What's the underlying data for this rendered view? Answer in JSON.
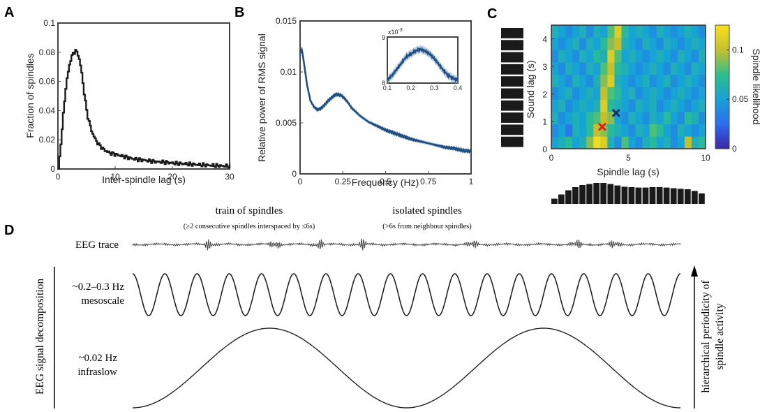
{
  "panels": {
    "A": "A",
    "B": "B",
    "C": "C",
    "D": "D"
  },
  "chart_data": [
    {
      "id": "A",
      "type": "line",
      "xlabel": "Inter-spindle lag (s)",
      "ylabel": "Fraction of spindles",
      "xlim": [
        0,
        30
      ],
      "ylim": [
        0,
        0.1
      ],
      "xticks": [
        "0",
        "10",
        "20",
        "30"
      ],
      "yticks": [
        "0",
        "0.02",
        "0.04",
        "0.06",
        "0.08",
        "0.1"
      ],
      "color": "#1a1a1a",
      "x": [
        0,
        0.5,
        1,
        1.5,
        2,
        2.5,
        3,
        3.5,
        4,
        4.5,
        5,
        5.5,
        6,
        6.5,
        7,
        7.5,
        8,
        9,
        10,
        11,
        12,
        13,
        14,
        15,
        16,
        17,
        18,
        19,
        20,
        21,
        22,
        23,
        24,
        25,
        26,
        27,
        28,
        29,
        30
      ],
      "y": [
        0,
        0.02,
        0.045,
        0.062,
        0.073,
        0.079,
        0.081,
        0.078,
        0.068,
        0.052,
        0.038,
        0.03,
        0.024,
        0.02,
        0.017,
        0.015,
        0.013,
        0.011,
        0.01,
        0.009,
        0.008,
        0.007,
        0.0065,
        0.006,
        0.0055,
        0.005,
        0.0048,
        0.0045,
        0.004,
        0.0038,
        0.0035,
        0.0033,
        0.003,
        0.0028,
        0.0026,
        0.0024,
        0.0022,
        0.002,
        0.002
      ]
    },
    {
      "id": "B",
      "type": "line",
      "xlabel": "Frequency (Hz)",
      "ylabel": "Relative power of RMS signal",
      "xlim": [
        0,
        1
      ],
      "ylim": [
        0,
        0.015
      ],
      "xticks": [
        "0",
        "0.25",
        "0.5",
        "0.75",
        "1"
      ],
      "yticks": [
        "0",
        "0.005",
        "0.01",
        "0.015"
      ],
      "color": "#1f4f82",
      "x": [
        0,
        0.01,
        0.02,
        0.04,
        0.06,
        0.08,
        0.1,
        0.12,
        0.14,
        0.16,
        0.18,
        0.2,
        0.22,
        0.24,
        0.26,
        0.28,
        0.3,
        0.35,
        0.4,
        0.45,
        0.5,
        0.55,
        0.6,
        0.65,
        0.7,
        0.75,
        0.8,
        0.85,
        0.9,
        0.95,
        1.0
      ],
      "y": [
        0.0118,
        0.0122,
        0.0112,
        0.0088,
        0.0072,
        0.0066,
        0.0063,
        0.0064,
        0.0067,
        0.0071,
        0.0074,
        0.0077,
        0.0078,
        0.0077,
        0.0074,
        0.007,
        0.0065,
        0.0057,
        0.0051,
        0.0047,
        0.0043,
        0.004,
        0.0037,
        0.0034,
        0.0032,
        0.003,
        0.0028,
        0.0026,
        0.0025,
        0.0023,
        0.0022
      ],
      "inset": {
        "xlim": [
          0.1,
          0.4
        ],
        "ylim": [
          0.006,
          0.009
        ],
        "xticks": [
          "0.1",
          "0.2",
          "0.3",
          "0.4"
        ],
        "yticks": [
          "8",
          "9"
        ],
        "exponent": "x10",
        "exponent_power": "-3",
        "x": [
          0.1,
          0.12,
          0.14,
          0.16,
          0.18,
          0.2,
          0.22,
          0.24,
          0.26,
          0.28,
          0.3,
          0.32,
          0.34,
          0.36,
          0.38,
          0.4
        ],
        "y": [
          0.0062,
          0.0065,
          0.0069,
          0.0073,
          0.0077,
          0.0079,
          0.0081,
          0.0082,
          0.0081,
          0.0079,
          0.0076,
          0.0072,
          0.0068,
          0.0065,
          0.0063,
          0.0062
        ]
      }
    },
    {
      "id": "C",
      "type": "heatmap",
      "xlabel": "Spindle lag (s)",
      "ylabel": "Sound lag (s)",
      "colorbar_label": "Spindle likelihood",
      "xlim": [
        0,
        10
      ],
      "ylim": [
        0,
        4.5
      ],
      "xticks": [
        "0",
        "5",
        "10"
      ],
      "yticks": [
        "0",
        "1",
        "2",
        "3",
        "4"
      ],
      "cbar_ticks": [
        "0",
        "0.05",
        "0.1"
      ],
      "cbar_range": [
        0,
        0.125
      ],
      "markers": [
        {
          "x": 3.3,
          "y": 0.8,
          "symbol": "x",
          "color": "#e02020"
        },
        {
          "x": 4.2,
          "y": 1.3,
          "symbol": "x",
          "color": "#1c2c6c"
        }
      ],
      "rows_bottom_to_top": [
        [
          0.05,
          0.06,
          0.07,
          0.05,
          0.06,
          0.09,
          0.12,
          0.11,
          0.06,
          0.04,
          0.08,
          0.05,
          0.04,
          0.06,
          0.07,
          0.05,
          0.06,
          0.04,
          0.05,
          0.1,
          0.06,
          0.07
        ],
        [
          0.04,
          0.05,
          0.03,
          0.06,
          0.05,
          0.07,
          0.1,
          0.09,
          0.07,
          0.06,
          0.05,
          0.04,
          0.06,
          0.05,
          0.08,
          0.07,
          0.05,
          0.04,
          0.06,
          0.05,
          0.04,
          0.05
        ],
        [
          0.06,
          0.04,
          0.05,
          0.06,
          0.05,
          0.07,
          0.08,
          0.1,
          0.09,
          0.05,
          0.04,
          0.06,
          0.05,
          0.04,
          0.06,
          0.05,
          0.07,
          0.05,
          0.04,
          0.07,
          0.06,
          0.04
        ],
        [
          0.05,
          0.06,
          0.04,
          0.05,
          0.06,
          0.05,
          0.06,
          0.11,
          0.07,
          0.06,
          0.05,
          0.04,
          0.06,
          0.05,
          0.06,
          0.04,
          0.05,
          0.06,
          0.05,
          0.04,
          0.05,
          0.06
        ],
        [
          0.04,
          0.05,
          0.06,
          0.04,
          0.05,
          0.06,
          0.05,
          0.1,
          0.08,
          0.07,
          0.05,
          0.06,
          0.04,
          0.05,
          0.06,
          0.05,
          0.04,
          0.05,
          0.06,
          0.05,
          0.04,
          0.05
        ],
        [
          0.06,
          0.05,
          0.04,
          0.06,
          0.05,
          0.04,
          0.06,
          0.09,
          0.11,
          0.06,
          0.05,
          0.04,
          0.05,
          0.06,
          0.04,
          0.05,
          0.06,
          0.04,
          0.05,
          0.06,
          0.05,
          0.04
        ],
        [
          0.05,
          0.04,
          0.06,
          0.05,
          0.04,
          0.06,
          0.05,
          0.08,
          0.1,
          0.07,
          0.06,
          0.05,
          0.04,
          0.05,
          0.06,
          0.05,
          0.04,
          0.06,
          0.05,
          0.04,
          0.06,
          0.05
        ],
        [
          0.04,
          0.06,
          0.05,
          0.04,
          0.06,
          0.05,
          0.07,
          0.06,
          0.11,
          0.08,
          0.05,
          0.06,
          0.05,
          0.04,
          0.05,
          0.06,
          0.05,
          0.04,
          0.06,
          0.05,
          0.04,
          0.06
        ],
        [
          0.05,
          0.04,
          0.05,
          0.06,
          0.04,
          0.06,
          0.05,
          0.07,
          0.09,
          0.1,
          0.06,
          0.05,
          0.04,
          0.06,
          0.05,
          0.04,
          0.06,
          0.05,
          0.04,
          0.05,
          0.06,
          0.05
        ],
        [
          0.06,
          0.05,
          0.04,
          0.05,
          0.06,
          0.04,
          0.06,
          0.05,
          0.08,
          0.11,
          0.07,
          0.05,
          0.06,
          0.05,
          0.04,
          0.06,
          0.05,
          0.04,
          0.05,
          0.06,
          0.05,
          0.04
        ]
      ],
      "histogram_top": [
        0.25,
        0.45,
        0.65,
        0.8,
        0.9,
        0.95,
        1.0,
        1.0,
        0.95,
        0.88,
        0.82,
        0.8,
        0.78,
        0.78,
        0.8,
        0.8,
        0.78,
        0.75,
        0.72,
        0.7,
        0.62,
        0.5
      ],
      "left_bars": [
        1,
        1,
        1,
        1,
        1,
        1,
        1,
        1,
        1,
        1
      ]
    }
  ],
  "panelD": {
    "title_train": "train of spindles",
    "sub_train": "(≥2 consecutive spindles interspaced by ≤6s)",
    "title_isolated": "isolated spindles",
    "sub_isolated": "(>6s from neighbour spindles)",
    "eeg_label": "EEG trace",
    "meso_label_1": "~0.2–0.3 Hz",
    "meso_label_2": "mesoscale",
    "infra_label_1": "~0.02 Hz",
    "infra_label_2": "infraslow",
    "left_axis": "EEG signal decomposition",
    "right_axis_1": "hierarchical periodicity of",
    "right_axis_2": "spindle activity",
    "meso_cycles": 17,
    "infra_cycles": 2,
    "spindle_bursts": [
      0.14,
      0.26,
      0.34,
      0.42,
      0.62,
      0.81,
      0.88
    ]
  }
}
